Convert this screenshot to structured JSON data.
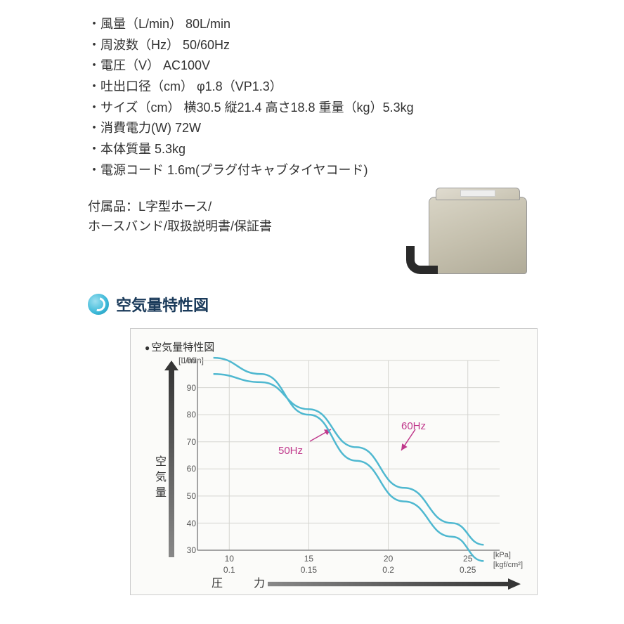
{
  "specs": [
    "風量（L/min） 80L/min",
    "周波数（Hz） 50/60Hz",
    "電圧（V） AC100V",
    "吐出口径（cm） φ1.8（VP1.3）",
    "サイズ（cm） 横30.5 縦21.4 高さ18.8 重量（kg）5.3kg",
    "消費電力(W) 72W",
    "本体質量 5.3kg",
    "電源コード 1.6m(プラグ付キャブタイヤコード)"
  ],
  "accessories": {
    "line1": "付属品：L字型ホース/",
    "line2": "ホースバンド/取扱説明書/保証書"
  },
  "section": {
    "title": "空気量特性図"
  },
  "chart": {
    "title": "空気量特性図",
    "y_label": "空気量",
    "y_unit": "[L/min]",
    "x_label": "圧　力",
    "x_unit_line1": "[kPa]",
    "x_unit_line2": "[kgf/cm²]",
    "y_ticks": [
      30,
      40,
      50,
      60,
      70,
      80,
      90,
      100
    ],
    "y_range": [
      30,
      100
    ],
    "x_ticks": [
      {
        "kpa": "10",
        "kgf": "0.1"
      },
      {
        "kpa": "15",
        "kgf": "0.15"
      },
      {
        "kpa": "20",
        "kgf": "0.2"
      },
      {
        "kpa": "25",
        "kgf": "0.25"
      }
    ],
    "x_range": [
      8,
      27
    ],
    "series": [
      {
        "name": "50Hz",
        "color": "#4fb8d0",
        "width": 2.5,
        "label_pos": {
          "x": 115,
          "y": 120
        },
        "arrow_from": {
          "x": 160,
          "y": 115
        },
        "arrow_to": {
          "x": 190,
          "y": 98
        },
        "points": [
          {
            "x": 9,
            "y": 95
          },
          {
            "x": 12,
            "y": 92
          },
          {
            "x": 15,
            "y": 82
          },
          {
            "x": 18,
            "y": 68
          },
          {
            "x": 21,
            "y": 53
          },
          {
            "x": 24,
            "y": 40
          },
          {
            "x": 26,
            "y": 32
          }
        ]
      },
      {
        "name": "60Hz",
        "color": "#4fb8d0",
        "width": 2.5,
        "label_pos": {
          "x": 290,
          "y": 85
        },
        "arrow_from": {
          "x": 310,
          "y": 98
        },
        "arrow_to": {
          "x": 290,
          "y": 128
        },
        "points": [
          {
            "x": 9,
            "y": 101
          },
          {
            "x": 12,
            "y": 95
          },
          {
            "x": 15,
            "y": 80
          },
          {
            "x": 18,
            "y": 63
          },
          {
            "x": 21,
            "y": 48
          },
          {
            "x": 24,
            "y": 35
          },
          {
            "x": 26,
            "y": 26
          }
        ]
      }
    ],
    "annotation_color": "#c0398c",
    "grid_color": "#d5d5d0",
    "axis_color": "#888"
  }
}
